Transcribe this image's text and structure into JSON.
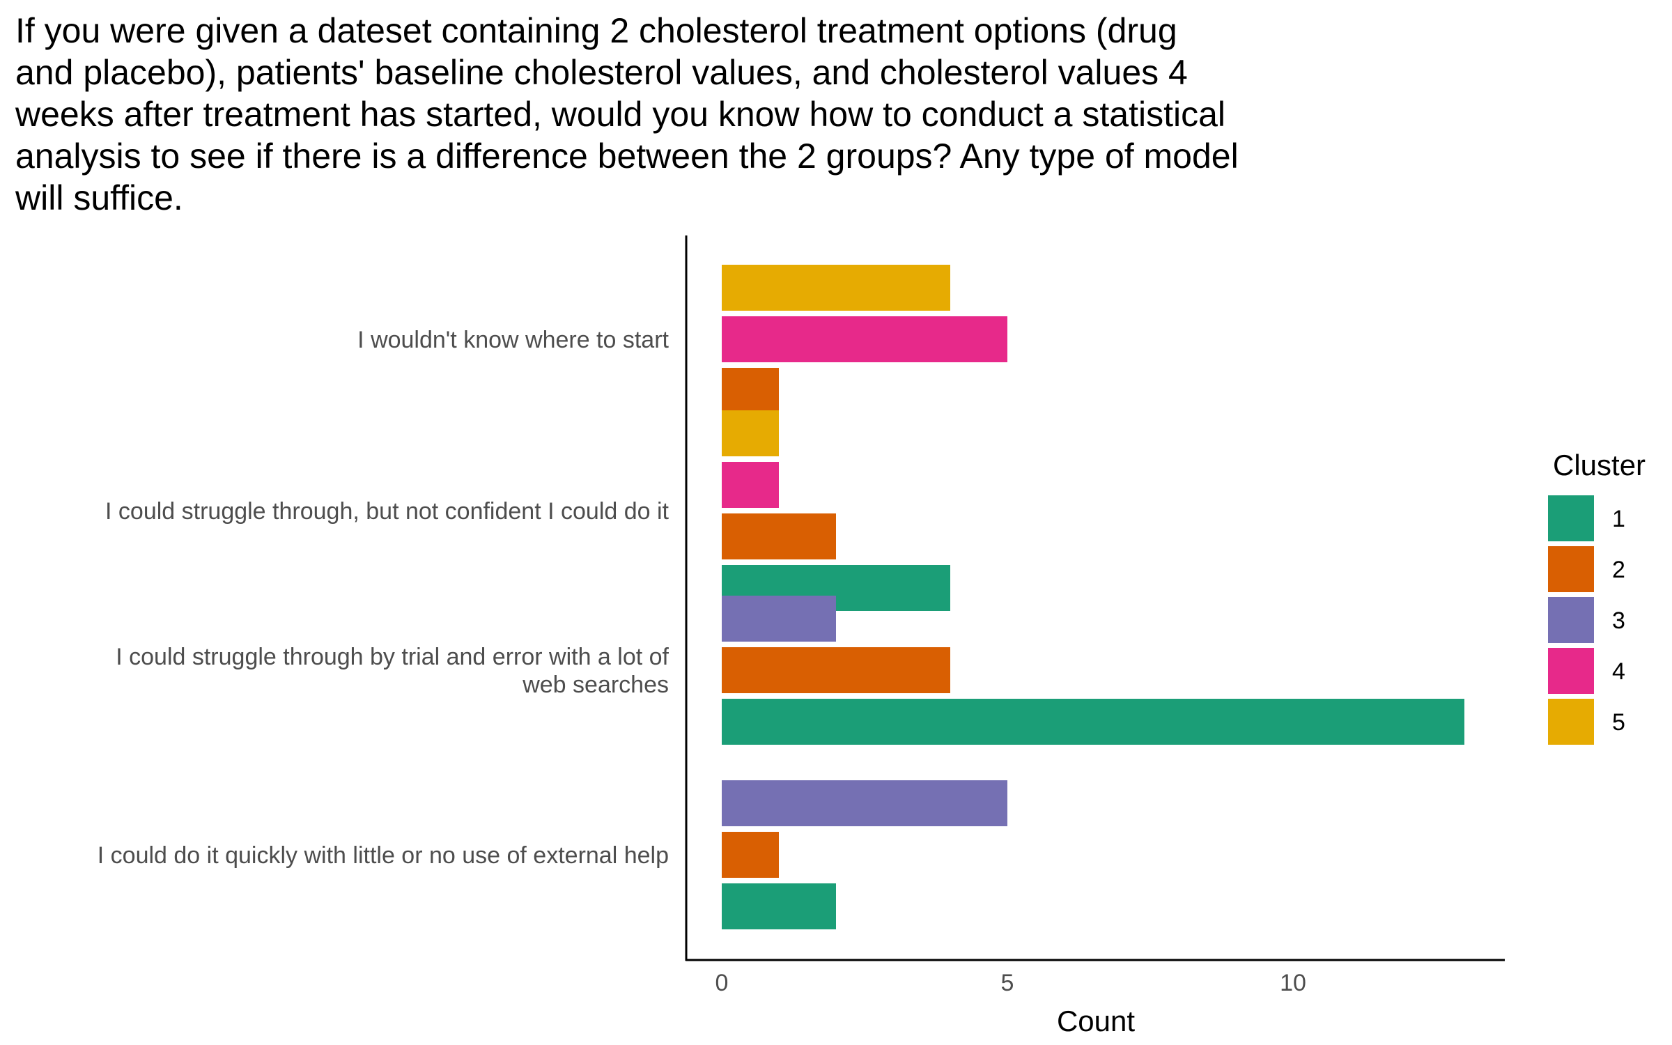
{
  "chart_data": {
    "type": "bar",
    "orientation": "horizontal",
    "title": "If you were given a dateset containing 2 cholesterol treatment options (drug\nand placebo), patients' baseline cholesterol values, and cholesterol values 4\nweeks after treatment has started, would you know how to conduct a statistical\nanalysis to see if there is a difference between the 2 groups? Any type of model\nwill suffice.",
    "xlabel": "Count",
    "ylabel": "",
    "xlim": [
      0,
      13.5
    ],
    "x_ticks": [
      0,
      5,
      10
    ],
    "grid": false,
    "legend_title": "Cluster",
    "legend_position": "right",
    "categories": [
      {
        "label": "I wouldn't know where to start",
        "bars": [
          {
            "cluster": "5",
            "value": 4
          },
          {
            "cluster": "4",
            "value": 5
          },
          {
            "cluster": "2",
            "value": 1
          }
        ]
      },
      {
        "label": "I could struggle through, but not confident I could do it",
        "bars": [
          {
            "cluster": "5",
            "value": 1
          },
          {
            "cluster": "4",
            "value": 1
          },
          {
            "cluster": "2",
            "value": 2
          },
          {
            "cluster": "1",
            "value": 4
          }
        ]
      },
      {
        "label": "I could struggle through by trial and error with a lot of\nweb searches",
        "bars": [
          {
            "cluster": "3",
            "value": 2
          },
          {
            "cluster": "2",
            "value": 4
          },
          {
            "cluster": "1",
            "value": 13
          }
        ]
      },
      {
        "label": "I could do it quickly with little or no use of external help",
        "bars": [
          {
            "cluster": "3",
            "value": 5
          },
          {
            "cluster": "2",
            "value": 1
          },
          {
            "cluster": "1",
            "value": 2
          }
        ]
      }
    ],
    "series": [
      {
        "name": "1",
        "color": "#1b9e77"
      },
      {
        "name": "2",
        "color": "#d95f02"
      },
      {
        "name": "3",
        "color": "#7570b3"
      },
      {
        "name": "4",
        "color": "#e7298a"
      },
      {
        "name": "5",
        "color": "#e6ab02"
      }
    ]
  }
}
